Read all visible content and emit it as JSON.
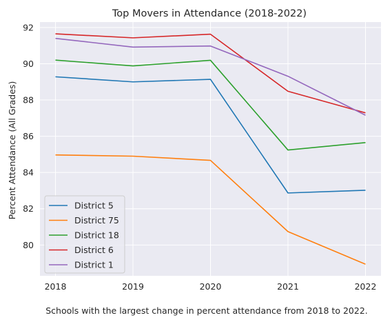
{
  "chart_data": {
    "type": "line",
    "title": "Top Movers in Attendance (2018-2022)",
    "xlabel": "",
    "ylabel": "Percent Attendance (All Grades)",
    "caption": "Schools with the largest change in percent attendance from 2018 to 2022.",
    "x": [
      2018,
      2019,
      2020,
      2021,
      2022
    ],
    "xlim": [
      2017.8,
      2022.2
    ],
    "ylim": [
      78.3,
      92.3
    ],
    "yticks": [
      80,
      82,
      84,
      86,
      88,
      90,
      92
    ],
    "grid": true,
    "legend_position": "lower-left",
    "series": [
      {
        "name": "District 5",
        "color": "#1f77b4",
        "values": [
          89.28,
          89.0,
          89.14,
          82.87,
          83.02
        ]
      },
      {
        "name": "District 75",
        "color": "#ff7f0e",
        "values": [
          84.97,
          84.9,
          84.67,
          80.74,
          78.94
        ]
      },
      {
        "name": "District 18",
        "color": "#2ca02c",
        "values": [
          90.2,
          89.88,
          90.19,
          85.24,
          85.65
        ]
      },
      {
        "name": "District 6",
        "color": "#d62728",
        "values": [
          91.65,
          91.43,
          91.63,
          88.48,
          87.29
        ]
      },
      {
        "name": "District 1",
        "color": "#9467bd",
        "values": [
          91.4,
          90.92,
          90.98,
          89.31,
          87.16
        ]
      }
    ]
  }
}
